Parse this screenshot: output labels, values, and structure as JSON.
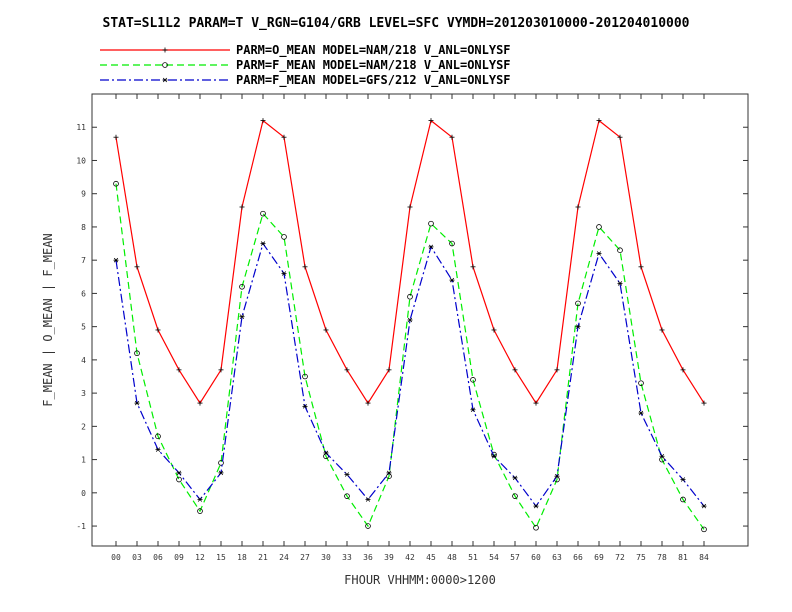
{
  "chart_data": {
    "type": "line",
    "title": "STAT=SL1L2 PARAM=T V_RGN=G104/GRB LEVEL=SFC VYMDH=201203010000-201204010000",
    "xlabel": "FHOUR VHHMM:0000>1200",
    "ylabel": "F_MEAN | O_MEAN | F_MEAN",
    "ylim": [
      -1.6,
      12.0
    ],
    "yticks": [
      -1,
      0,
      1,
      2,
      3,
      4,
      5,
      6,
      7,
      8,
      9,
      10,
      11
    ],
    "categories": [
      "00",
      "03",
      "06",
      "09",
      "12",
      "15",
      "18",
      "21",
      "24",
      "27",
      "30",
      "33",
      "36",
      "39",
      "42",
      "45",
      "48",
      "51",
      "54",
      "57",
      "60",
      "63",
      "66",
      "69",
      "72",
      "75",
      "78",
      "81",
      "84"
    ],
    "grid": false,
    "legend_position": "top",
    "series": [
      {
        "name": "PARM=O_MEAN MODEL=NAM/218 V_ANL=ONLYSF",
        "color": "#ff0000",
        "dash": "solid",
        "marker": "plus",
        "values": [
          10.7,
          6.8,
          4.9,
          3.7,
          2.7,
          3.7,
          8.6,
          11.2,
          10.7,
          6.8,
          4.9,
          3.7,
          2.7,
          3.7,
          8.6,
          11.2,
          10.7,
          6.8,
          4.9,
          3.7,
          2.7,
          3.7,
          8.6,
          11.2,
          10.7,
          6.8,
          4.9,
          3.7,
          2.7
        ]
      },
      {
        "name": "PARM=F_MEAN MODEL=NAM/218 V_ANL=ONLYSF",
        "color": "#00ee00",
        "dash": "dashed",
        "marker": "circle",
        "values": [
          9.3,
          4.2,
          1.7,
          0.4,
          -0.55,
          0.9,
          6.2,
          8.4,
          7.7,
          3.5,
          1.1,
          -0.1,
          -1.0,
          0.5,
          5.9,
          8.1,
          7.5,
          3.4,
          1.15,
          -0.1,
          -1.05,
          0.4,
          5.7,
          8.0,
          7.3,
          3.3,
          1.0,
          -0.2,
          -1.1
        ]
      },
      {
        "name": "PARM=F_MEAN MODEL=GFS/212 V_ANL=ONLYSF",
        "color": "#0000cc",
        "dash": "dashdot",
        "marker": "star",
        "values": [
          7.0,
          2.7,
          1.3,
          0.6,
          -0.2,
          0.6,
          5.3,
          7.5,
          6.6,
          2.6,
          1.2,
          0.55,
          -0.2,
          0.6,
          5.2,
          7.4,
          6.4,
          2.5,
          1.1,
          0.45,
          -0.4,
          0.5,
          5.0,
          7.2,
          6.3,
          2.4,
          1.1,
          0.4,
          -0.4
        ]
      }
    ]
  }
}
